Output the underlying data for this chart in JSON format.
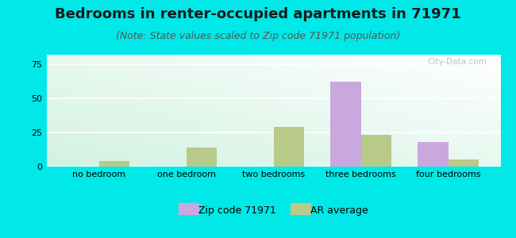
{
  "title": "Bedrooms in renter-occupied apartments in 71971",
  "subtitle": "(Note: State values scaled to Zip code 71971 population)",
  "categories": [
    "no bedroom",
    "one bedroom",
    "two bedrooms",
    "three bedrooms",
    "four bedrooms"
  ],
  "zip_values": [
    0,
    0,
    0,
    62,
    18
  ],
  "ar_values": [
    4,
    14,
    29,
    23,
    5
  ],
  "zip_color": "#c9a8e0",
  "ar_color": "#b8c98a",
  "background_color": "#00e8e8",
  "ylim": [
    0,
    82
  ],
  "yticks": [
    0,
    25,
    50,
    75
  ],
  "bar_width": 0.35,
  "title_fontsize": 13,
  "subtitle_fontsize": 9,
  "tick_fontsize": 8,
  "legend_fontsize": 9,
  "watermark": "City-Data.com"
}
